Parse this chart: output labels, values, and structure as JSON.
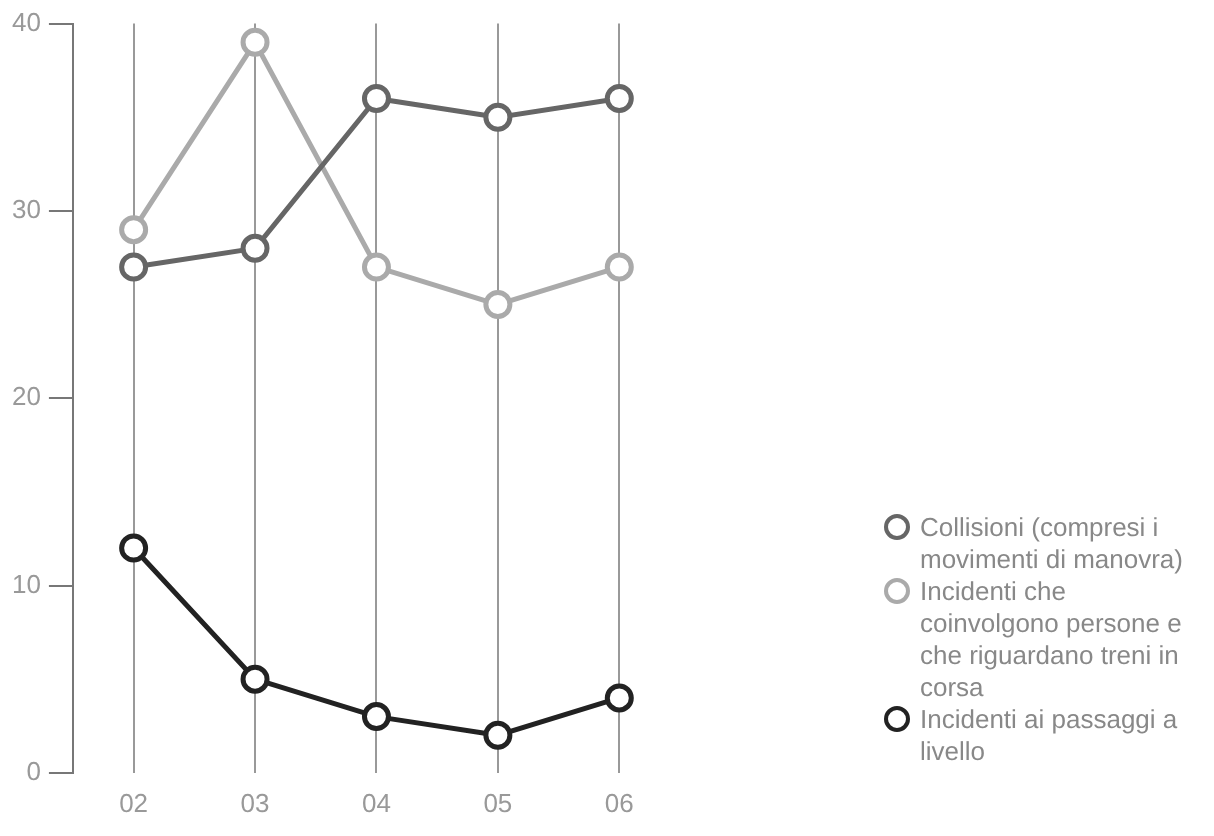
{
  "chart_data": {
    "type": "line",
    "categories": [
      "02",
      "03",
      "04",
      "05",
      "06"
    ],
    "series": [
      {
        "name": "Collisioni (compresi i movimenti di manovra)",
        "color": "#666666",
        "values": [
          27,
          28,
          36,
          35,
          36
        ]
      },
      {
        "name": "Incidenti che coinvolgono persone e che riguardano treni in corsa",
        "color": "#aaaaaa",
        "values": [
          29,
          39,
          27,
          25,
          27
        ]
      },
      {
        "name": "Incidenti ai passaggi a livello",
        "color": "#222222",
        "values": [
          12,
          5,
          3,
          2,
          4
        ]
      }
    ],
    "ylim": [
      0,
      40
    ],
    "yticks": [
      0,
      10,
      20,
      30,
      40
    ],
    "grid": "x",
    "legend": "right",
    "marker": "circle",
    "line_style": "solid"
  }
}
